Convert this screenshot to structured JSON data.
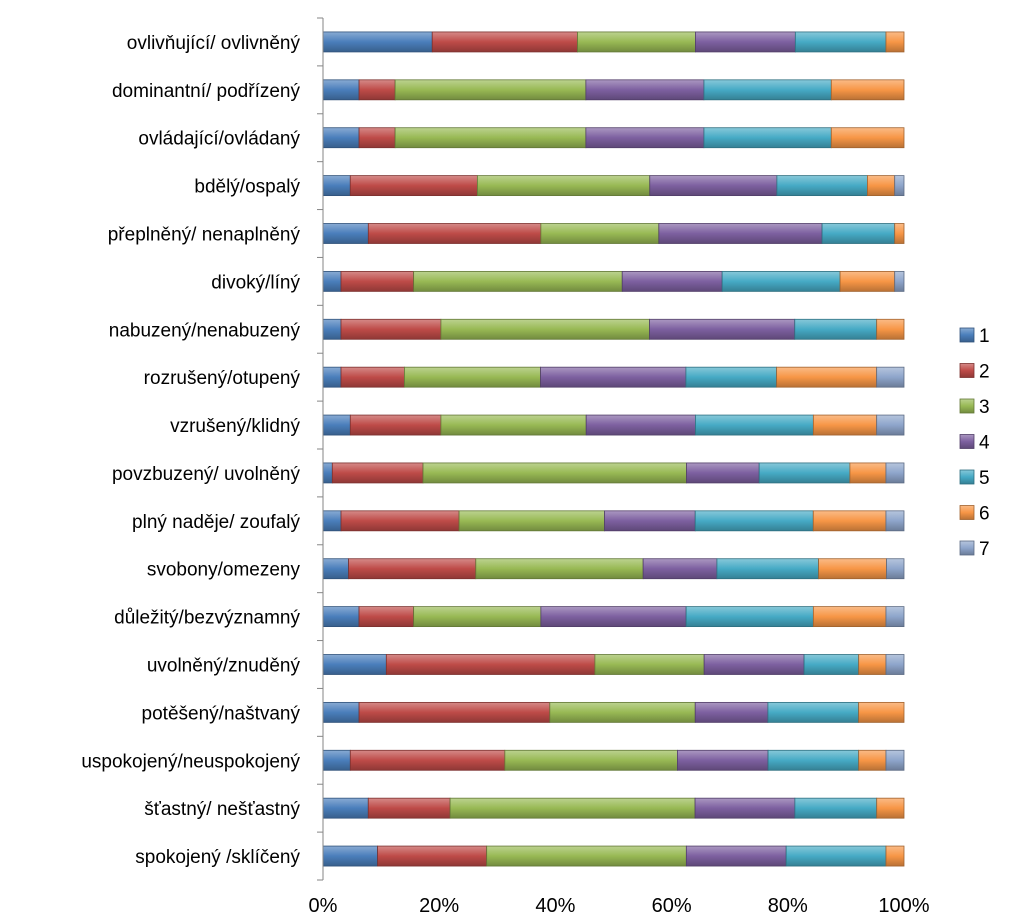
{
  "chart_data": {
    "type": "bar",
    "orientation": "horizontal",
    "stacked": "percent",
    "xlim": [
      0,
      100
    ],
    "x_ticks": [
      "0%",
      "20%",
      "40%",
      "60%",
      "80%",
      "100%"
    ],
    "legend_position": "right",
    "grid": false,
    "categories": [
      "ovlivňující/ ovlivněný",
      "dominantní/ podřízený",
      "ovládající/ovládaný",
      "bdělý/ospalý",
      "přeplněný/ nenaplněný",
      "divoký/líný",
      "nabuzený/nenabuzený",
      "rozrušený/otupený",
      "vzrušený/klidný",
      "povzbuzený/ uvolněný",
      "plný naděje/ zoufalý",
      "svobony/omezeny",
      "důležitý/bezvýznamný",
      "uvolněný/znuděný",
      "potěšený/naštvaný",
      "uspokojený/neuspokojený",
      "šťastný/ nešťastný",
      "spokojený /sklíčený"
    ],
    "series": [
      {
        "name": "1",
        "color": "#4a7ebb",
        "values": [
          18.8,
          6.2,
          6.2,
          4.7,
          7.8,
          3.1,
          3.1,
          3.1,
          4.7,
          1.6,
          3.1,
          4.4,
          6.2,
          10.9,
          6.2,
          4.7,
          7.8,
          9.4
        ]
      },
      {
        "name": "2",
        "color": "#be4b48",
        "values": [
          25.0,
          6.2,
          6.2,
          21.9,
          29.7,
          12.5,
          17.2,
          10.9,
          15.6,
          15.6,
          20.3,
          21.9,
          9.4,
          35.9,
          32.8,
          26.6,
          14.1,
          18.8
        ]
      },
      {
        "name": "3",
        "color": "#98b954",
        "values": [
          20.3,
          32.8,
          32.8,
          29.7,
          20.3,
          35.9,
          35.9,
          23.4,
          25.0,
          45.3,
          25.0,
          28.8,
          21.9,
          18.8,
          25.0,
          29.7,
          42.2,
          34.4
        ]
      },
      {
        "name": "4",
        "color": "#7d60a0",
        "values": [
          17.2,
          20.3,
          20.3,
          21.9,
          28.1,
          17.2,
          25.0,
          25.0,
          18.8,
          12.5,
          15.6,
          12.7,
          25.0,
          17.2,
          12.5,
          15.6,
          17.2,
          17.2
        ]
      },
      {
        "name": "5",
        "color": "#46aac5",
        "values": [
          15.6,
          21.9,
          21.9,
          15.6,
          12.5,
          20.3,
          14.1,
          15.6,
          20.3,
          15.6,
          20.3,
          17.5,
          21.9,
          9.4,
          15.6,
          15.6,
          14.1,
          17.2
        ]
      },
      {
        "name": "6",
        "color": "#f79646",
        "values": [
          3.1,
          12.5,
          12.5,
          4.7,
          1.6,
          9.4,
          4.7,
          17.2,
          10.9,
          6.2,
          12.5,
          11.7,
          12.5,
          4.7,
          7.8,
          4.7,
          4.7,
          3.1
        ]
      },
      {
        "name": "7",
        "color": "#8ea5cb",
        "values": [
          0,
          0,
          0,
          1.6,
          0,
          1.6,
          0,
          4.7,
          4.7,
          3.1,
          3.1,
          3.0,
          3.1,
          3.1,
          0,
          3.1,
          0,
          0
        ]
      }
    ]
  }
}
